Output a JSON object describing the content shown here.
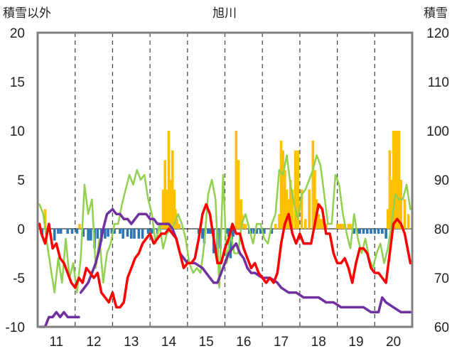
{
  "chart_data": {
    "type": "line",
    "title": "旭川",
    "ylabel_left": "積雪以外",
    "ylabel_right": "積雪",
    "ylim_left": [
      -10,
      20
    ],
    "ylim_right": [
      60,
      120
    ],
    "yticks_left": [
      "20",
      "15",
      "10",
      "5",
      "0",
      "-5",
      "-10"
    ],
    "yticks_right": [
      "120",
      "110",
      "100",
      "90",
      "80",
      "70",
      "60"
    ],
    "xlim": [
      10.5,
      20.5
    ],
    "xticks": [
      "11",
      "12",
      "13",
      "14",
      "15",
      "16",
      "17",
      "18",
      "19",
      "20"
    ],
    "grid": "vertical dashed",
    "colors": {
      "temperature": "#ff0000",
      "humidity_green": "#92d050",
      "snow_depth": "#7030a0",
      "positive_bars": "#ffc000",
      "negative_bars": "#2e75b6",
      "frame": "#808080",
      "grid": "#404040"
    },
    "series": [
      {
        "key": "red",
        "axis": "left",
        "x": [
          10.55,
          10.6,
          10.7,
          10.8,
          10.9,
          11.0,
          11.1,
          11.2,
          11.3,
          11.4,
          11.5,
          11.6,
          11.7,
          11.8,
          11.9,
          12.0,
          12.1,
          12.2,
          12.3,
          12.4,
          12.5,
          12.6,
          12.7,
          12.8,
          12.9,
          13.0,
          13.1,
          13.2,
          13.3,
          13.4,
          13.5,
          13.6,
          13.7,
          13.8,
          13.9,
          14.0,
          14.1,
          14.2,
          14.3,
          14.4,
          14.5,
          14.6,
          14.7,
          14.8,
          14.9,
          15.0,
          15.1,
          15.2,
          15.3,
          15.4,
          15.5,
          15.6,
          15.7,
          15.8,
          15.9,
          16.0,
          16.1,
          16.2,
          16.3,
          16.4,
          16.5,
          16.6,
          16.7,
          16.8,
          16.9,
          17.0,
          17.1,
          17.2,
          17.3,
          17.4,
          17.5,
          17.6,
          17.7,
          17.8,
          17.9,
          18.0,
          18.1,
          18.2,
          18.3,
          18.4,
          18.5,
          18.6,
          18.7,
          18.8,
          18.9,
          19.0,
          19.1,
          19.2,
          19.3,
          19.4,
          19.5,
          19.6,
          19.7,
          19.8,
          19.9,
          20.0,
          20.1,
          20.2,
          20.3,
          20.45
        ],
        "values": [
          0.5,
          -0.5,
          -1.5,
          0.5,
          -2.0,
          -1.5,
          -3.0,
          -3.5,
          -4.5,
          -5.5,
          -6.0,
          -5.0,
          -5.5,
          -4.0,
          -4.5,
          -5.0,
          -4.5,
          -6.5,
          -7.0,
          -7.5,
          -6.5,
          -8.0,
          -8.0,
          -7.5,
          -5.0,
          -4.0,
          -3.0,
          -2.5,
          -1.5,
          -1.0,
          -0.5,
          -1.5,
          -1.0,
          -0.5,
          -0.5,
          0.0,
          -0.5,
          -1.0,
          -2.5,
          -4.0,
          -3.5,
          -3.5,
          -3.0,
          -1.0,
          1.5,
          2.5,
          1.5,
          -1.0,
          -3.5,
          -3.5,
          -2.0,
          -1.0,
          0.5,
          -0.5,
          -0.5,
          -2.0,
          -3.0,
          -4.0,
          -3.5,
          -4.5,
          -5.0,
          -5.5,
          -5.0,
          -5.5,
          -4.5,
          -1.5,
          0.5,
          1.5,
          -0.5,
          -1.5,
          -0.5,
          -1.5,
          -1.5,
          -1.5,
          0.5,
          2.5,
          2.0,
          -0.5,
          -0.5,
          -2.5,
          -3.5,
          -3.5,
          -3.0,
          -4.0,
          -5.5,
          -3.5,
          -2.0,
          -2.0,
          -2.5,
          -4.0,
          -4.5,
          -4.5,
          -5.0,
          -5.5,
          -2.5,
          0.5,
          1.0,
          0.5,
          -0.5,
          -3.5
        ]
      },
      {
        "key": "green",
        "axis": "left",
        "x": [
          10.55,
          10.65,
          10.75,
          10.85,
          10.95,
          11.05,
          11.15,
          11.25,
          11.35,
          11.45,
          11.55,
          11.65,
          11.75,
          11.85,
          11.95,
          12.05,
          12.15,
          12.25,
          12.35,
          12.45,
          12.55,
          12.65,
          12.75,
          12.85,
          12.95,
          13.05,
          13.15,
          13.25,
          13.35,
          13.45,
          13.55,
          13.65,
          13.75,
          13.85,
          13.95,
          14.05,
          14.15,
          14.25,
          14.35,
          14.45,
          14.55,
          14.65,
          14.75,
          14.85,
          14.95,
          15.05,
          15.15,
          15.25,
          15.35,
          15.45,
          15.55,
          15.65,
          15.75,
          15.85,
          15.95,
          16.05,
          16.15,
          16.25,
          16.35,
          16.45,
          16.55,
          16.65,
          16.75,
          16.85,
          16.95,
          17.05,
          17.15,
          17.25,
          17.35,
          17.45,
          17.55,
          17.65,
          17.75,
          17.85,
          17.95,
          18.05,
          18.15,
          18.25,
          18.35,
          18.45,
          18.55,
          18.65,
          18.75,
          18.85,
          18.95,
          19.05,
          19.15,
          19.25,
          19.35,
          19.45,
          19.55,
          19.65,
          19.75,
          19.85,
          19.95,
          20.05,
          20.15,
          20.25,
          20.35,
          20.45
        ],
        "values": [
          2.5,
          1.5,
          -1.5,
          -4.0,
          -6.5,
          -3.0,
          -5.5,
          -1.0,
          -5.0,
          -3.5,
          -6.5,
          -3.0,
          4.5,
          1.5,
          3.0,
          -4.0,
          -1.0,
          -5.5,
          -2.5,
          -1.5,
          0.5,
          0.5,
          2.5,
          4.0,
          5.5,
          4.5,
          6.0,
          5.0,
          5.5,
          3.0,
          1.5,
          -1.5,
          0.5,
          -2.0,
          -0.5,
          0.0,
          0.5,
          1.5,
          0.5,
          -1.0,
          -3.5,
          -4.5,
          -4.0,
          -4.5,
          -1.5,
          3.5,
          5.0,
          3.0,
          -6.0,
          5.5,
          -3.5,
          -0.5,
          -2.5,
          -2.5,
          0.5,
          1.5,
          0.0,
          -1.5,
          0.5,
          0.5,
          -1.0,
          -1.5,
          0.5,
          1.5,
          6.0,
          5.5,
          7.5,
          4.5,
          2.5,
          1.0,
          3.5,
          4.0,
          5.0,
          6.0,
          7.5,
          6.5,
          3.5,
          0.5,
          0.5,
          5.5,
          4.5,
          1.5,
          -0.5,
          -2.0,
          1.5,
          -1.0,
          -2.5,
          -1.0,
          -3.0,
          -4.0,
          -2.5,
          -1.5,
          -3.5,
          -2.0,
          0.5,
          3.5,
          3.0,
          3.0,
          4.5,
          2.0
        ]
      },
      {
        "key": "purple",
        "axis": "right",
        "segments": [
          {
            "x": [
              10.55,
              10.7,
              10.8,
              10.9,
              11.0,
              11.1,
              11.2,
              11.3,
              11.4,
              11.5,
              11.6
            ],
            "values": [
              60,
              60,
              62,
              62,
              63,
              62,
              63,
              62,
              62,
              62,
              62
            ]
          },
          {
            "x": [
              11.65,
              11.75,
              11.85,
              11.95,
              12.05,
              12.15,
              12.25,
              12.35,
              12.5,
              12.6,
              12.7,
              12.8,
              12.9,
              13.0,
              13.1,
              13.2,
              13.3,
              13.4,
              13.5,
              13.6,
              13.7,
              13.8,
              13.9,
              14.0,
              14.1,
              14.2,
              14.3,
              14.5,
              14.7,
              14.9,
              15.0,
              15.1,
              15.2,
              15.3,
              15.4,
              15.5,
              15.6,
              15.7,
              15.8,
              15.9,
              16.0,
              16.1,
              16.2,
              16.3,
              16.5,
              16.7,
              16.9,
              17.0,
              17.2,
              17.4,
              17.6,
              17.8,
              18.0,
              18.2,
              18.4,
              18.6,
              18.8,
              19.0,
              19.2,
              19.4,
              19.6,
              19.7,
              19.8,
              20.0,
              20.2,
              20.45
            ],
            "values": [
              67,
              68,
              69,
              71,
              73,
              76,
              80,
              83,
              84,
              83,
              83,
              82,
              82,
              81,
              82,
              83,
              83,
              83,
              82,
              82,
              81,
              81,
              81,
              81,
              80,
              78,
              75,
              73,
              73,
              72,
              71,
              70,
              69,
              69,
              71,
              73,
              75,
              76,
              77,
              75,
              74,
              72,
              71,
              71,
              70,
              70,
              69,
              68,
              67,
              67,
              66,
              66,
              66,
              65,
              65,
              64,
              64,
              64,
              64,
              63,
              63,
              66,
              65,
              64,
              63,
              63
            ]
          }
        ]
      },
      {
        "key": "bars",
        "axis": "left",
        "x": [
          10.62,
          10.7,
          10.95,
          11.05,
          11.12,
          11.3,
          11.42,
          11.55,
          11.62,
          11.72,
          11.85,
          11.92,
          12.02,
          12.1,
          12.2,
          12.3,
          12.38,
          12.48,
          12.55,
          12.7,
          12.78,
          12.9,
          13.0,
          13.08,
          13.2,
          13.3,
          13.45,
          13.55,
          13.7,
          13.8,
          13.85,
          13.9,
          13.95,
          14.0,
          14.05,
          14.1,
          14.15,
          14.18,
          14.22,
          14.28,
          14.8,
          14.9,
          14.95,
          15.05,
          15.1,
          15.15,
          15.2,
          15.3,
          15.38,
          15.55,
          15.6,
          15.62,
          15.65,
          15.68,
          15.72,
          15.8,
          15.83,
          15.86,
          15.9,
          15.93,
          15.96,
          16.0,
          16.05,
          16.15,
          16.2,
          16.28,
          16.35,
          16.45,
          16.55,
          16.75,
          16.85,
          16.95,
          17.0,
          17.05,
          17.1,
          17.15,
          17.2,
          17.25,
          17.3,
          17.38,
          17.45,
          17.55,
          17.65,
          17.75,
          17.85,
          17.9,
          17.95,
          18.0,
          18.05,
          18.1,
          18.2,
          18.5,
          18.55,
          18.6,
          18.65,
          18.7,
          18.8,
          18.85,
          18.95,
          19.05,
          19.1,
          19.2,
          19.3,
          19.4,
          19.5,
          19.6,
          19.7,
          19.8,
          19.85,
          19.9,
          19.95,
          20.0,
          20.05,
          20.1,
          20.15,
          20.2,
          20.3,
          20.4
        ],
        "values": [
          -0.8,
          2.0,
          -1.2,
          -0.5,
          -0.5,
          -0.5,
          -0.5,
          -0.5,
          0.5,
          -0.8,
          -1.2,
          -1.2,
          -2.0,
          -1.0,
          -1.3,
          -1.0,
          -0.8,
          -0.5,
          -0.5,
          -0.5,
          -1.0,
          -0.8,
          -1.0,
          -1.0,
          -1.0,
          -1.0,
          -0.5,
          -0.5,
          -0.5,
          0.5,
          4.0,
          7.0,
          4.0,
          10.0,
          5.0,
          8.0,
          4.0,
          2.0,
          1.0,
          0.5,
          -0.5,
          -1.0,
          -1.5,
          -0.5,
          -0.5,
          -0.5,
          -2.5,
          -2.5,
          -2.0,
          -0.5,
          -0.8,
          -2.5,
          -3.0,
          -2.0,
          -0.8,
          10.0,
          5.0,
          7.0,
          2.0,
          3.0,
          1.5,
          0.5,
          0.5,
          -0.5,
          -0.5,
          -0.5,
          -0.5,
          -0.5,
          -0.5,
          -0.5,
          0.5,
          1.5,
          9.0,
          8.0,
          6.0,
          4.0,
          3.0,
          5.0,
          4.0,
          8.0,
          8.0,
          4.0,
          1.0,
          4.0,
          9.0,
          6.0,
          3.0,
          1.5,
          1.0,
          1.0,
          0.5,
          0.5,
          0.5,
          0.5,
          0.5,
          0.5,
          0.5,
          0.5,
          -0.5,
          -0.5,
          -0.5,
          -0.5,
          -0.5,
          -0.5,
          -0.5,
          -0.5,
          -0.5,
          -1.0,
          2.0,
          8.0,
          5.0,
          10.0,
          10.0,
          10.0,
          10.0,
          5.0,
          3.0,
          1.5
        ]
      }
    ]
  }
}
